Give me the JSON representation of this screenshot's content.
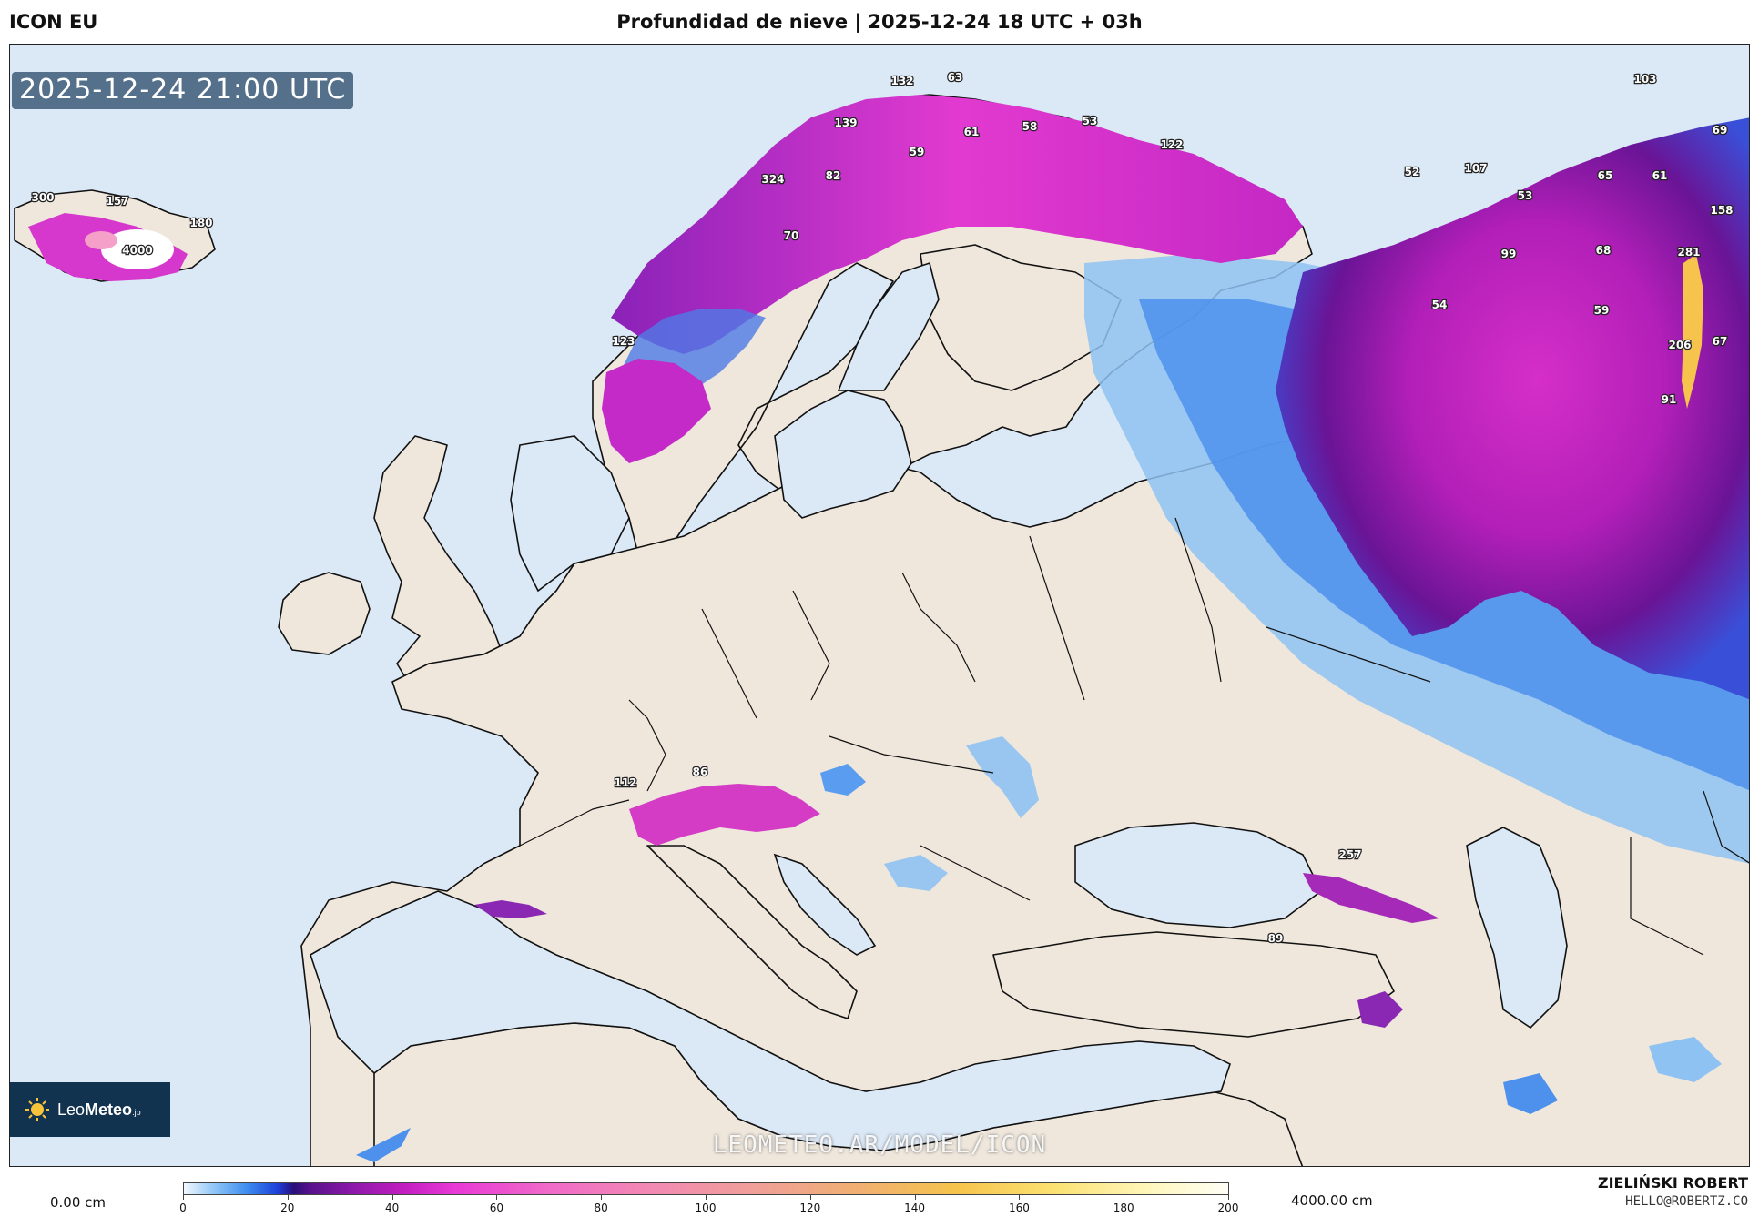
{
  "header": {
    "model": "ICON EU",
    "title": "Profundidad de nieve | 2025-12-24 18 UTC + 03h"
  },
  "map": {
    "timestamp": "2025-12-24 21:00 UTC",
    "watermark": "LEOMETEO.AR/MODEL/ICON",
    "logo": {
      "brand_light": "Leo",
      "brand_bold": "Meteo",
      "suffix": ".jp"
    },
    "colors": {
      "sea": "#dbe8f6",
      "land": "#efe7dc",
      "border": "#111111"
    },
    "point_labels": [
      {
        "text": "300"
      },
      {
        "text": "157"
      },
      {
        "text": "180"
      },
      {
        "text": "4000"
      },
      {
        "text": "132"
      },
      {
        "text": "63"
      },
      {
        "text": "139"
      },
      {
        "text": "61"
      },
      {
        "text": "58"
      },
      {
        "text": "53"
      },
      {
        "text": "59"
      },
      {
        "text": "122"
      },
      {
        "text": "324"
      },
      {
        "text": "82"
      },
      {
        "text": "70"
      },
      {
        "text": "123"
      },
      {
        "text": "103"
      },
      {
        "text": "69"
      },
      {
        "text": "52"
      },
      {
        "text": "107"
      },
      {
        "text": "65"
      },
      {
        "text": "61"
      },
      {
        "text": "53"
      },
      {
        "text": "158"
      },
      {
        "text": "99"
      },
      {
        "text": "68"
      },
      {
        "text": "281"
      },
      {
        "text": "54"
      },
      {
        "text": "59"
      },
      {
        "text": "206"
      },
      {
        "text": "67"
      },
      {
        "text": "91"
      },
      {
        "text": "112"
      },
      {
        "text": "86"
      },
      {
        "text": "257"
      },
      {
        "text": "89"
      }
    ]
  },
  "colorbar": {
    "min_label": "0.00 cm",
    "max_label": "4000.00 cm",
    "ticks": [
      "0",
      "20",
      "40",
      "60",
      "80",
      "100",
      "120",
      "140",
      "160",
      "180",
      "200"
    ]
  },
  "credits": {
    "name": "ZIELIŃSKI ROBERT",
    "email": "HELLO@ROBERTZ.CO"
  }
}
